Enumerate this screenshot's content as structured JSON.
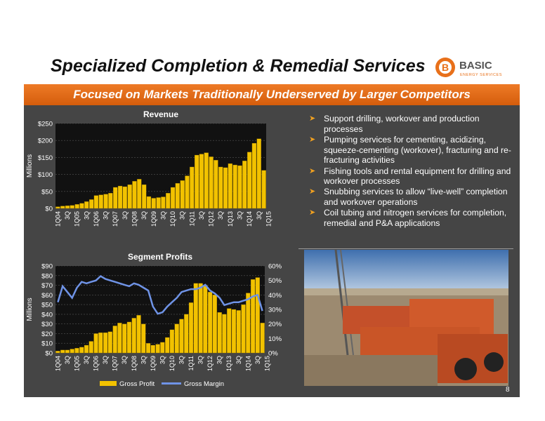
{
  "title": "Specialized Completion & Remedial Services",
  "logo": {
    "word": "BASIC",
    "tagline": "ENERGY SERVICES",
    "letter": "B"
  },
  "banner": "Focused on Markets Traditionally Underserved by Larger Competitors",
  "page_number": "8",
  "bullets": [
    "Support drilling, workover and production processes",
    "Pumping services for cementing, acidizing, squeeze-cementing (workover), fracturing and re-fracturing activities",
    "Fishing tools and rental equipment for drilling and workover processes",
    "Snubbing services to allow “live-well” completion and workover operations",
    "Coil tubing and nitrogen services for completion, remedial and P&A applications"
  ],
  "colors": {
    "orange": "#e8701a",
    "bar": "#f2c200",
    "line": "#6f93e6",
    "panel": "#454545"
  },
  "chart_data": [
    {
      "type": "bar",
      "title": "Revenue",
      "ylabel": "Millions",
      "ylim": [
        0,
        250
      ],
      "yticks": [
        "$0",
        "$50",
        "$100",
        "$150",
        "$200",
        "$250"
      ],
      "xtick_labels": [
        "1Q04",
        "3Q",
        "1Q05",
        "3Q",
        "1Q06",
        "3Q",
        "1Q07",
        "3Q",
        "1Q08",
        "3Q",
        "1Q09",
        "3Q",
        "1Q10",
        "3Q",
        "1Q11",
        "3Q",
        "1Q12",
        "3Q",
        "1Q13",
        "3Q",
        "1Q14",
        "3Q",
        "1Q15"
      ],
      "values": [
        5,
        7,
        8,
        9,
        12,
        15,
        20,
        26,
        38,
        40,
        42,
        45,
        62,
        66,
        64,
        70,
        80,
        86,
        70,
        35,
        30,
        32,
        34,
        45,
        62,
        74,
        82,
        96,
        122,
        157,
        160,
        164,
        152,
        142,
        122,
        120,
        132,
        128,
        126,
        140,
        166,
        192,
        205,
        112
      ]
    },
    {
      "type": "bar+line",
      "title": "Segment Profits",
      "ylabel": "Millions",
      "ylim": [
        0,
        90
      ],
      "y2lim": [
        0,
        60
      ],
      "yticks": [
        "$0",
        "$10",
        "$20",
        "$30",
        "$40",
        "$50",
        "$60",
        "$70",
        "$80",
        "$90"
      ],
      "y2ticks": [
        "0%",
        "10%",
        "20%",
        "30%",
        "40%",
        "50%",
        "60%"
      ],
      "xtick_labels": [
        "1Q04",
        "3Q",
        "1Q05",
        "3Q",
        "1Q06",
        "3Q",
        "1Q07",
        "3Q",
        "1Q08",
        "3Q",
        "1Q09",
        "3Q",
        "1Q10",
        "3Q",
        "1Q11",
        "3Q",
        "1Q12",
        "3Q",
        "1Q13",
        "3Q",
        "1Q14",
        "3Q",
        "1Q15"
      ],
      "legend": [
        "Gross Profit",
        "Gross Margin"
      ],
      "legend_position": "bottom",
      "series": [
        {
          "name": "Gross Profit",
          "kind": "bar",
          "values": [
            2,
            3,
            3,
            4,
            5,
            6,
            8,
            12,
            20,
            21,
            21,
            22,
            28,
            31,
            30,
            32,
            36,
            39,
            30,
            10,
            8,
            9,
            11,
            16,
            24,
            30,
            35,
            40,
            52,
            72,
            72,
            70,
            63,
            60,
            42,
            40,
            46,
            45,
            44,
            50,
            62,
            76,
            78,
            31
          ]
        },
        {
          "name": "Gross Margin",
          "kind": "line",
          "values": [
            35,
            46,
            42,
            38,
            45,
            49,
            48,
            49,
            50,
            53,
            51,
            50,
            49,
            48,
            47,
            46,
            48,
            47,
            45,
            43,
            32,
            27,
            28,
            32,
            35,
            38,
            42,
            43,
            44,
            44,
            45,
            47,
            43,
            41,
            38,
            33,
            34,
            35,
            35,
            36,
            37,
            39,
            40,
            29
          ]
        }
      ]
    }
  ]
}
